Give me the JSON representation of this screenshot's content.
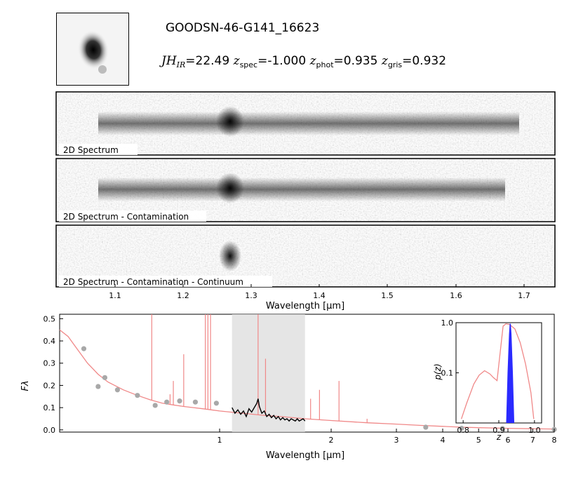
{
  "header": {
    "object_id": "GOODSN-46-G141_16623",
    "mag_label": "JH",
    "mag_sub": "IR",
    "mag_value": "=22.49",
    "zspec_sub": "spec",
    "zspec_value": "=-1.000",
    "zphot_sub": "phot",
    "zphot_value": "=0.935",
    "zgris_sub": "gris",
    "zgris_value": "=0.932",
    "z_symbol": "z"
  },
  "spectra_2d": {
    "panel_labels": [
      "2D Spectrum",
      "2D Spectrum - Contamination",
      "2D Spectrum - Contamination - Continuum"
    ],
    "xlabel": "Wavelength [μm]",
    "xticks": [
      "1.1",
      "1.2",
      "1.3",
      "1.4",
      "1.5",
      "1.6",
      "1.7"
    ]
  },
  "chart_data": [
    {
      "type": "line",
      "name": "sed",
      "xlabel": "Wavelength [μm]",
      "ylabel": "Fλ",
      "xscale": "log",
      "xlim": [
        0.37,
        8.0
      ],
      "ylim": [
        -0.01,
        0.52
      ],
      "xtick_labels": [
        "1",
        "2",
        "3",
        "4",
        "5",
        "6",
        "7",
        "8"
      ],
      "ytick_labels": [
        "0.0",
        "0.1",
        "0.2",
        "0.3",
        "0.4",
        "0.5"
      ],
      "shaded_band": [
        1.08,
        1.7
      ],
      "series": [
        {
          "role": "template_continuum",
          "color": "#f08888",
          "x": [
            0.37,
            0.39,
            0.41,
            0.44,
            0.47,
            0.5,
            0.55,
            0.6,
            0.65,
            0.7,
            0.75,
            0.8,
            0.85,
            0.9,
            0.95,
            1.0,
            1.1,
            1.2,
            1.3,
            1.5,
            1.7,
            2.0,
            2.5,
            3.0,
            3.5,
            4.0,
            4.5,
            5.0,
            6.0,
            7.0,
            8.0
          ],
          "y": [
            0.45,
            0.42,
            0.37,
            0.3,
            0.25,
            0.215,
            0.18,
            0.155,
            0.135,
            0.12,
            0.112,
            0.105,
            0.1,
            0.095,
            0.09,
            0.085,
            0.078,
            0.072,
            0.066,
            0.058,
            0.05,
            0.042,
            0.032,
            0.026,
            0.02,
            0.016,
            0.012,
            0.01,
            0.007,
            0.005,
            0.004
          ]
        },
        {
          "role": "template_emission_lines",
          "color": "#f08888",
          "lines": [
            {
              "x": 0.656,
              "peak": 0.52
            },
            {
              "x": 0.735,
              "peak": 0.16
            },
            {
              "x": 0.75,
              "peak": 0.22
            },
            {
              "x": 0.8,
              "peak": 0.34
            },
            {
              "x": 0.915,
              "peak": 0.52
            },
            {
              "x": 0.93,
              "peak": 0.52
            },
            {
              "x": 0.945,
              "peak": 0.52
            },
            {
              "x": 1.27,
              "peak": 0.52
            },
            {
              "x": 1.33,
              "peak": 0.32
            },
            {
              "x": 1.76,
              "peak": 0.14
            },
            {
              "x": 1.86,
              "peak": 0.18
            },
            {
              "x": 2.1,
              "peak": 0.22
            },
            {
              "x": 2.5,
              "peak": 0.05
            }
          ]
        },
        {
          "role": "photometry",
          "color": "#a8a8a8",
          "x": [
            0.43,
            0.47,
            0.49,
            0.53,
            0.6,
            0.67,
            0.72,
            0.78,
            0.86,
            0.98,
            3.6,
            4.5,
            5.8,
            8.0
          ],
          "y": [
            0.365,
            0.195,
            0.235,
            0.18,
            0.155,
            0.11,
            0.125,
            0.13,
            0.125,
            0.12,
            0.012,
            0.007,
            0.006,
            0.002
          ]
        },
        {
          "role": "grism_spectrum",
          "color": "#000000",
          "x": [
            1.08,
            1.1,
            1.12,
            1.14,
            1.16,
            1.18,
            1.2,
            1.22,
            1.24,
            1.26,
            1.27,
            1.28,
            1.3,
            1.32,
            1.34,
            1.36,
            1.38,
            1.4,
            1.42,
            1.44,
            1.46,
            1.48,
            1.5,
            1.52,
            1.54,
            1.56,
            1.58,
            1.6,
            1.62,
            1.64,
            1.66,
            1.68,
            1.7
          ],
          "y": [
            0.1,
            0.075,
            0.09,
            0.07,
            0.085,
            0.06,
            0.095,
            0.08,
            0.1,
            0.12,
            0.14,
            0.105,
            0.075,
            0.085,
            0.06,
            0.07,
            0.055,
            0.065,
            0.05,
            0.06,
            0.045,
            0.055,
            0.045,
            0.05,
            0.04,
            0.05,
            0.045,
            0.04,
            0.05,
            0.04,
            0.045,
            0.05,
            0.04
          ]
        }
      ]
    },
    {
      "type": "line",
      "name": "pz_inset",
      "xlabel": "z",
      "ylabel": "p(z)",
      "yscale": "log",
      "xlim": [
        0.78,
        1.02
      ],
      "ylim": [
        0.01,
        1.0
      ],
      "xtick_labels": [
        "0.8",
        "0.9",
        "1.0"
      ],
      "ytick_labels": [
        "1.0",
        "0.1"
      ],
      "series": [
        {
          "role": "photo_z",
          "color": "#f08888",
          "x": [
            0.795,
            0.81,
            0.83,
            0.845,
            0.86,
            0.875,
            0.885,
            0.895,
            0.905,
            0.912,
            0.92,
            0.93,
            0.945,
            0.96,
            0.975,
            0.99,
            0.998
          ],
          "y": [
            0.012,
            0.025,
            0.06,
            0.09,
            0.11,
            0.095,
            0.08,
            0.07,
            0.3,
            0.85,
            0.95,
            0.92,
            0.75,
            0.4,
            0.15,
            0.04,
            0.012
          ]
        },
        {
          "role": "grism_z",
          "color": "#2a2aff",
          "x": [
            0.922,
            0.926,
            0.93,
            0.932,
            0.934,
            0.938,
            0.942
          ],
          "y": [
            0.01,
            0.1,
            0.6,
            0.95,
            0.6,
            0.1,
            0.01
          ]
        }
      ]
    }
  ]
}
